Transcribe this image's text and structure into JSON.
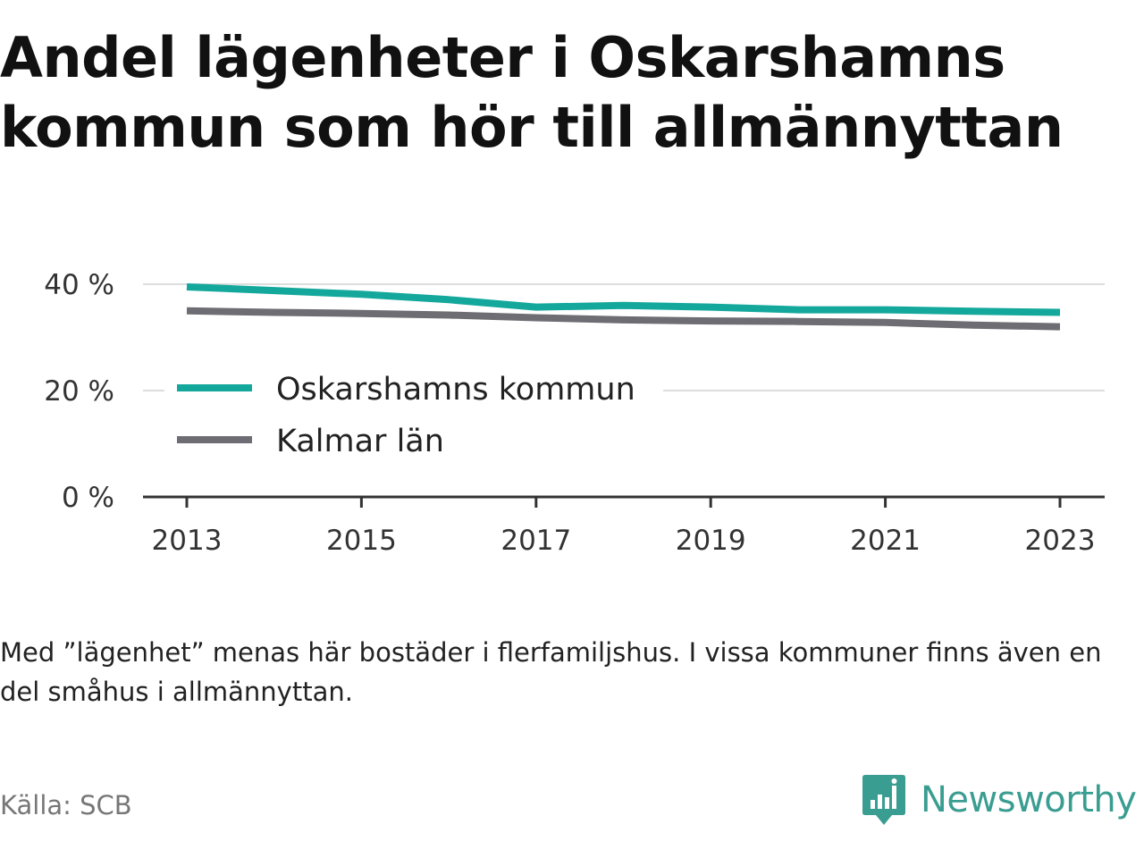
{
  "title": "Andel lägenheter i Oskarshamns kommun som hör till allmännyttan",
  "note": "Med ”lägenhet” menas här bostäder i flerfamiljshus. I vissa kommuner finns även en del småhus i allmännyttan.",
  "source": "Källa: SCB",
  "brand": {
    "name": "Newsworthy",
    "icon": "newsworthy-logo-icon",
    "color": "#3a9d91"
  },
  "chart_data": {
    "type": "line",
    "x": [
      2013,
      2014,
      2015,
      2016,
      2017,
      2018,
      2019,
      2020,
      2021,
      2022,
      2023
    ],
    "series": [
      {
        "name": "Oskarshamns kommun",
        "color": "#14a89c",
        "values": [
          39.5,
          38.8,
          38.1,
          37.1,
          35.7,
          36.0,
          35.7,
          35.2,
          35.2,
          34.9,
          34.7
        ]
      },
      {
        "name": "Kalmar län",
        "color": "#6e6d73",
        "values": [
          35.0,
          34.7,
          34.5,
          34.2,
          33.7,
          33.3,
          33.1,
          33.0,
          32.8,
          32.3,
          32.0
        ]
      }
    ],
    "x_ticks": [
      "2013",
      "2015",
      "2017",
      "2019",
      "2021",
      "2023"
    ],
    "y_ticks": [
      "0 %",
      "20 %",
      "40 %"
    ],
    "y_tick_values": [
      0,
      20,
      40
    ],
    "xlim": [
      2013,
      2023
    ],
    "ylim": [
      0,
      40
    ],
    "grid": "horizontal",
    "legend": "inside-left",
    "axis_color": "#333333",
    "grid_color": "#dddddd"
  }
}
